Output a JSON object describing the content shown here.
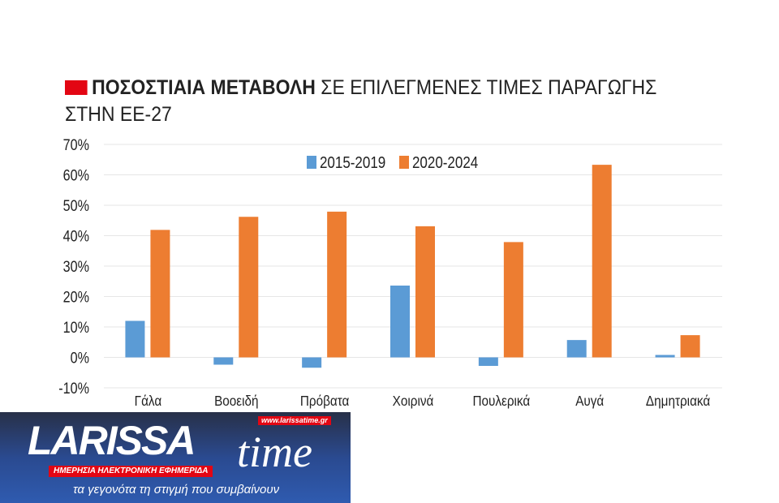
{
  "chart_data": {
    "type": "bar",
    "title_bold": "ΠΟΣΟΣΤΙΑΙΑ ΜΕΤΑΒΟΛΗ",
    "title_rest": "ΣΕ ΕΠΙΛΕΓΜΕΝΕΣ ΤΙΜΕΣ ΠΑΡΑΓΩΓΗΣ ΣΤΗΝ ΕΕ-27",
    "categories": [
      "Γάλα",
      "Βοοειδή",
      "Πρόβατα",
      "Χοιρινά",
      "Πουλερικά",
      "Αυγά",
      "Δημητριακά"
    ],
    "series": [
      {
        "name": "2015-2019",
        "color": "#5b9bd5",
        "values": [
          12.0,
          -2.4,
          -3.4,
          23.6,
          -2.8,
          5.7,
          0.8
        ]
      },
      {
        "name": "2020-2024",
        "color": "#ed7d31",
        "values": [
          41.9,
          46.2,
          47.9,
          43.1,
          37.9,
          63.3,
          7.3
        ]
      }
    ],
    "ylim": [
      -10,
      70
    ],
    "yticks": [
      "-10%",
      "0%",
      "10%",
      "20%",
      "30%",
      "40%",
      "50%",
      "60%",
      "70%"
    ],
    "legend": "top-center",
    "grid": true
  },
  "banner": {
    "logo": "LARISSA",
    "logo2": "time",
    "url": "www.larissatime.gr",
    "subtitle": "ΗΜΕΡΗΣΙΑ ΗΛΕΚΤΡΟΝΙΚΗ ΕΦΗΜΕΡΙΔΑ",
    "tagline": "τα γεγονότα τη στιγμή που συμβαίνουν"
  }
}
